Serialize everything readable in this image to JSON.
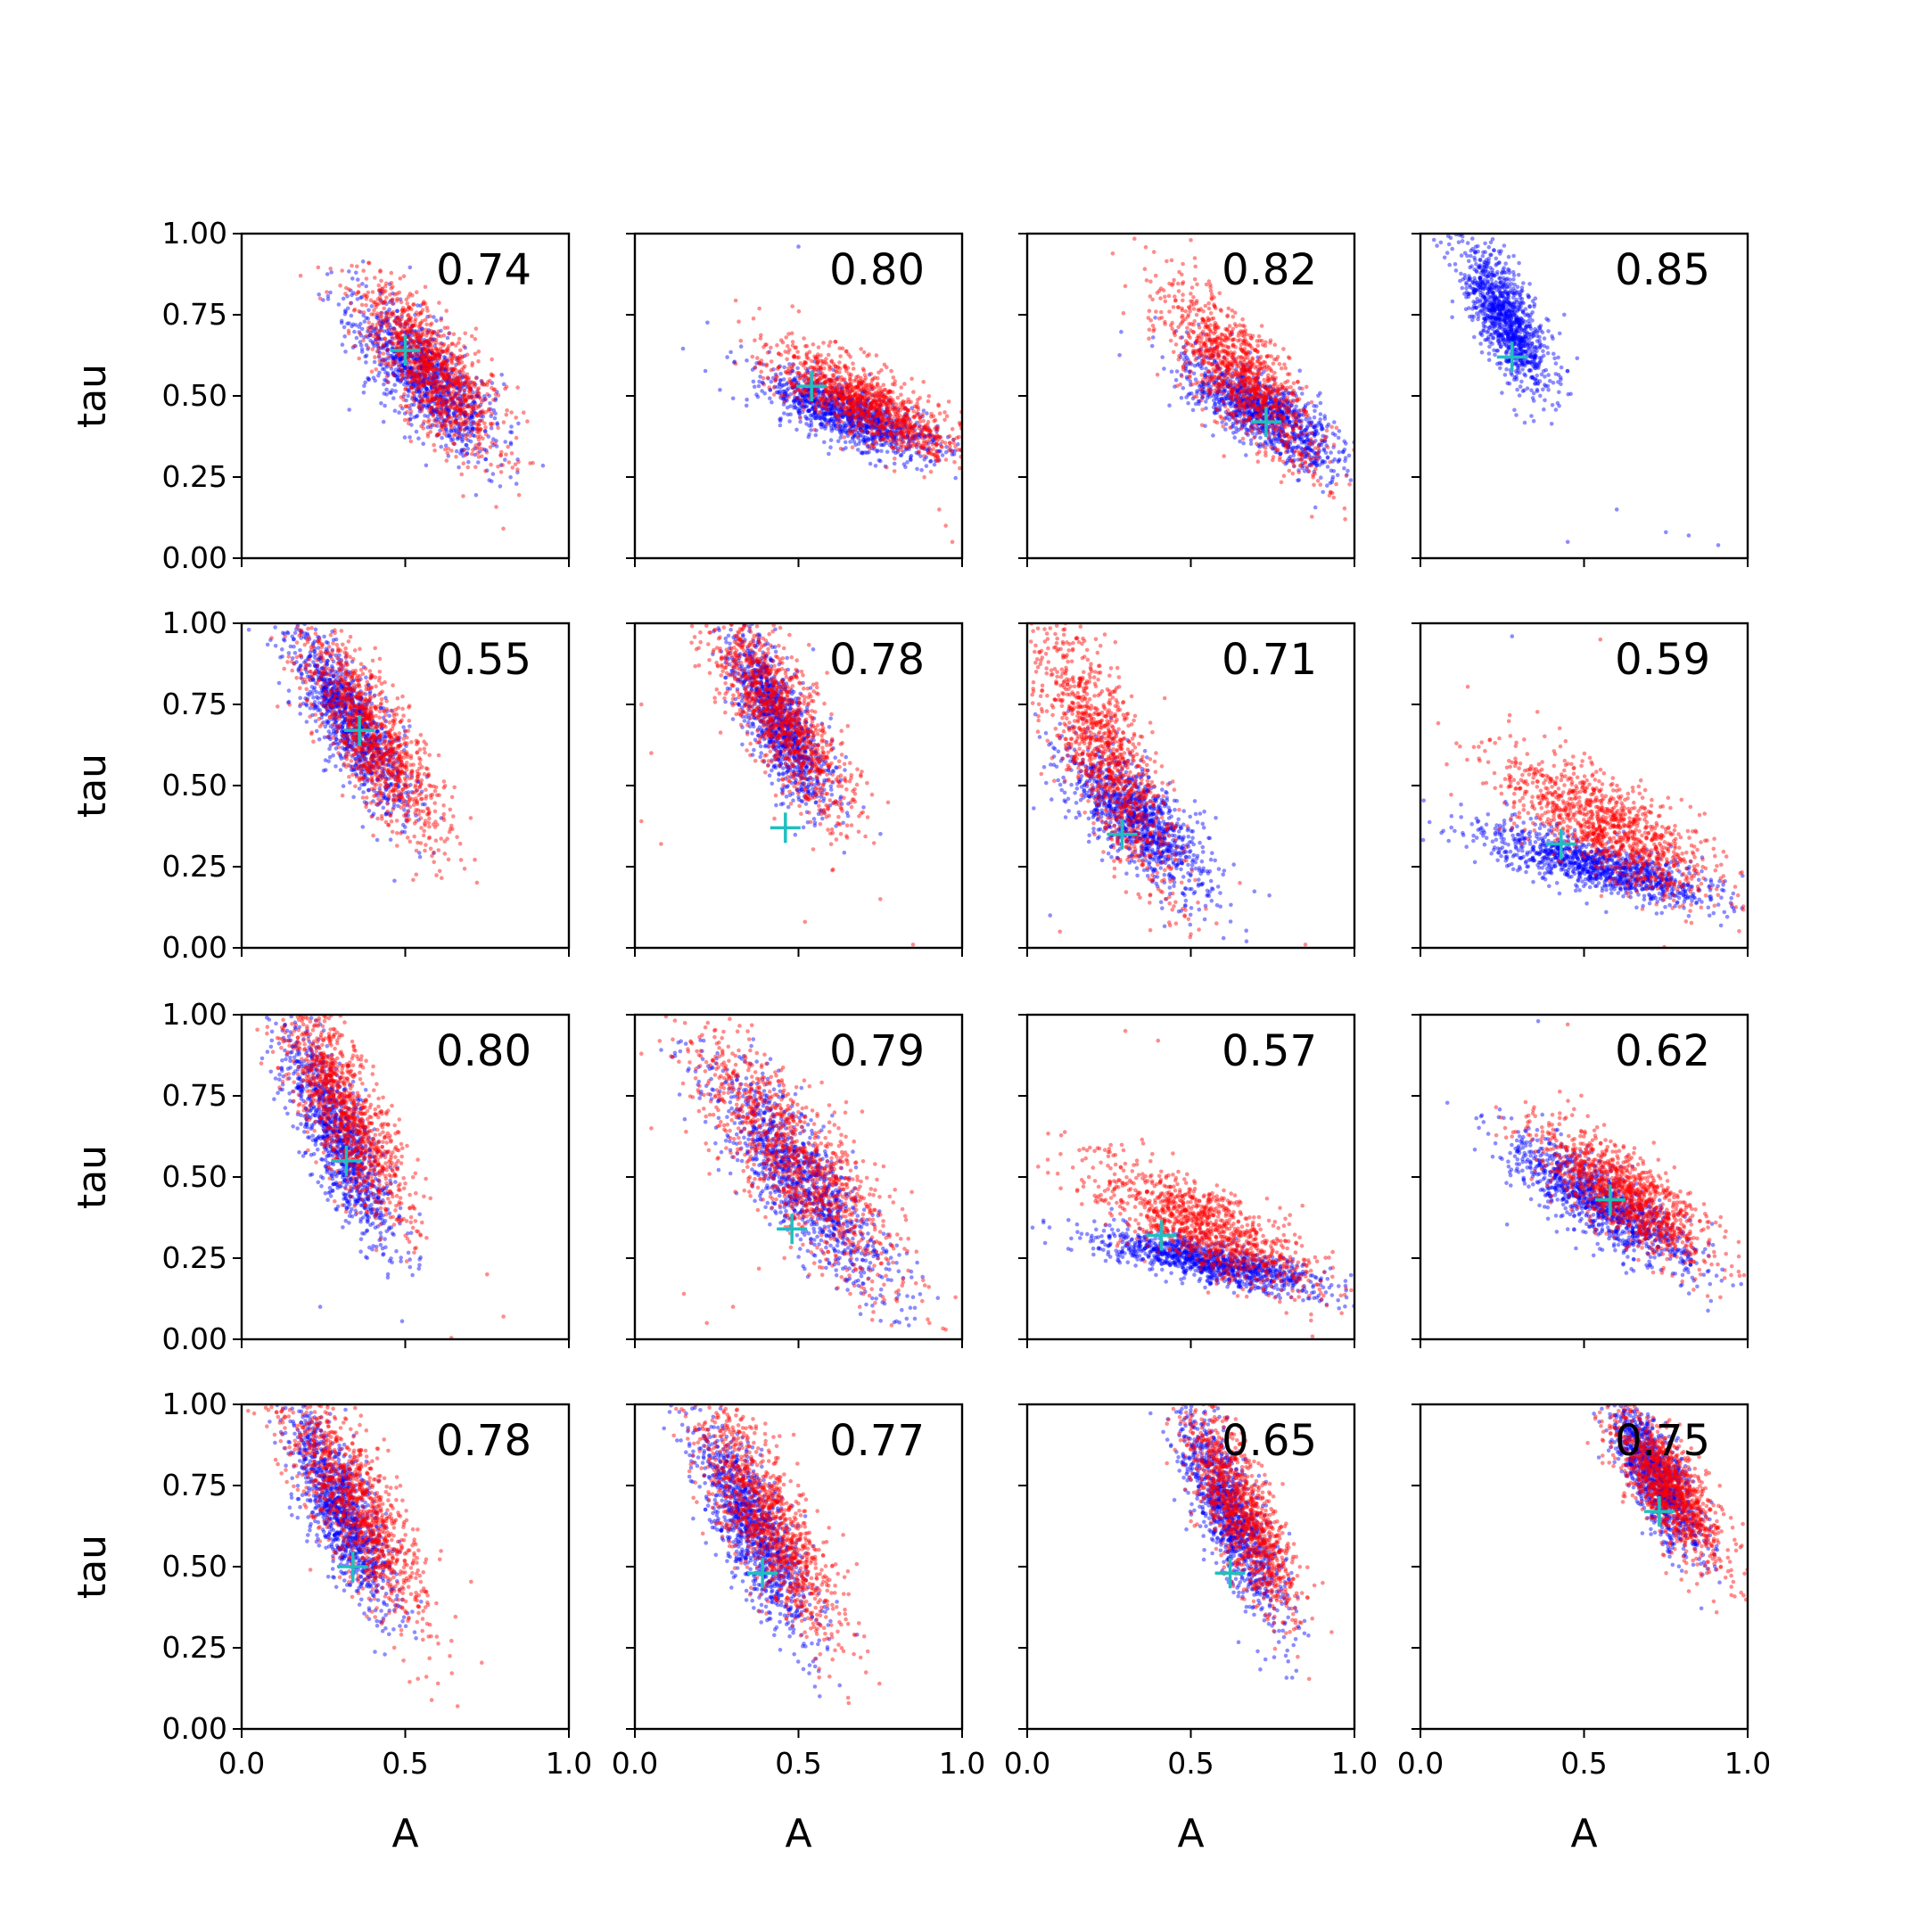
{
  "chart_data": {
    "type": "scatter",
    "layout": "4x4 grid of scatter panels, shared axes",
    "xlabel": "A",
    "ylabel": "tau",
    "xlim": [
      0.0,
      1.0
    ],
    "ylim": [
      0.0,
      1.0
    ],
    "xticks": [
      0.0,
      0.5,
      1.0
    ],
    "xtick_labels": [
      "0.0",
      "0.5",
      "1.0"
    ],
    "yticks": [
      0.0,
      0.25,
      0.5,
      0.75,
      1.0
    ],
    "ytick_labels": [
      "0.00",
      "0.25",
      "0.50",
      "0.75",
      "1.00"
    ],
    "grid": false,
    "series_colors": {
      "blue": "#0000ff",
      "red": "#ff0000",
      "marker": "#1fbfbf"
    },
    "panels": [
      {
        "row": 0,
        "col": 0,
        "label": "0.74",
        "marker": [
          0.5,
          0.64
        ],
        "blue": {
          "center": [
            0.56,
            0.56
          ],
          "spread": [
            0.1,
            0.14
          ],
          "slope": -1.0,
          "tail": []
        },
        "red": {
          "center": [
            0.58,
            0.58
          ],
          "spread": [
            0.1,
            0.16
          ],
          "slope": -1.1,
          "tail": [
            [
              0.18,
              0.87
            ],
            [
              0.24,
              0.8
            ],
            [
              0.26,
              0.82
            ]
          ]
        }
      },
      {
        "row": 0,
        "col": 1,
        "label": "0.80",
        "marker": [
          0.54,
          0.53
        ],
        "blue": {
          "center": [
            0.66,
            0.44
          ],
          "spread": [
            0.12,
            0.08
          ],
          "slope": -0.45,
          "tail": [
            [
              0.5,
              0.96
            ]
          ]
        },
        "red": {
          "center": [
            0.7,
            0.48
          ],
          "spread": [
            0.13,
            0.1
          ],
          "slope": -0.55,
          "tail": [
            [
              0.95,
              0.1
            ],
            [
              0.97,
              0.05
            ],
            [
              0.93,
              0.15
            ]
          ]
        }
      },
      {
        "row": 0,
        "col": 2,
        "label": "0.82",
        "marker": [
          0.73,
          0.42
        ],
        "blue": {
          "center": [
            0.72,
            0.45
          ],
          "spread": [
            0.11,
            0.1
          ],
          "slope": -0.7,
          "tail": []
        },
        "red": {
          "center": [
            0.66,
            0.56
          ],
          "spread": [
            0.11,
            0.15
          ],
          "slope": -1.1,
          "tail": [
            [
              0.5,
              0.98
            ]
          ]
        }
      },
      {
        "row": 0,
        "col": 3,
        "label": "0.85",
        "marker": [
          0.28,
          0.62
        ],
        "blue": {
          "center": [
            0.26,
            0.74
          ],
          "spread": [
            0.06,
            0.16
          ],
          "slope": -1.4,
          "tail": [
            [
              0.6,
              0.15
            ],
            [
              0.75,
              0.08
            ],
            [
              0.82,
              0.07
            ],
            [
              0.91,
              0.04
            ],
            [
              0.45,
              0.05
            ]
          ]
        }
      },
      {
        "row": 1,
        "col": 0,
        "label": "0.55",
        "marker": [
          0.36,
          0.67
        ],
        "blue": {
          "center": [
            0.33,
            0.7
          ],
          "spread": [
            0.08,
            0.16
          ],
          "slope": -1.5,
          "tail": []
        },
        "red": {
          "center": [
            0.4,
            0.65
          ],
          "spread": [
            0.1,
            0.17
          ],
          "slope": -1.4,
          "tail": [
            [
              0.13,
              0.86
            ],
            [
              0.7,
              0.4
            ]
          ]
        }
      },
      {
        "row": 1,
        "col": 1,
        "label": "0.78",
        "marker": [
          0.46,
          0.37
        ],
        "blue": {
          "center": [
            0.44,
            0.7
          ],
          "spread": [
            0.07,
            0.16
          ],
          "slope": -1.6,
          "tail": []
        },
        "red": {
          "center": [
            0.44,
            0.72
          ],
          "spread": [
            0.1,
            0.18
          ],
          "slope": -1.4,
          "tail": [
            [
              0.02,
              0.75
            ],
            [
              0.05,
              0.6
            ],
            [
              0.02,
              0.39
            ],
            [
              0.08,
              0.32
            ],
            [
              0.75,
              0.15
            ],
            [
              0.85,
              0.01
            ],
            [
              0.52,
              0.08
            ]
          ]
        }
      },
      {
        "row": 1,
        "col": 2,
        "label": "0.71",
        "marker": [
          0.29,
          0.35
        ],
        "blue": {
          "center": [
            0.33,
            0.4
          ],
          "spread": [
            0.1,
            0.15
          ],
          "slope": -0.9,
          "tail": [
            [
              0.02,
              0.43
            ],
            [
              0.07,
              0.1
            ],
            [
              0.6,
              0.03
            ],
            [
              0.67,
              0.02
            ]
          ]
        },
        "red": {
          "center": [
            0.24,
            0.6
          ],
          "spread": [
            0.1,
            0.22
          ],
          "slope": -1.8,
          "tail": [
            [
              0.1,
              0.05
            ],
            [
              0.85,
              0.01
            ],
            [
              0.65,
              0.2
            ]
          ]
        }
      },
      {
        "row": 1,
        "col": 3,
        "label": "0.59",
        "marker": [
          0.43,
          0.32
        ],
        "blue": {
          "center": [
            0.55,
            0.25
          ],
          "spread": [
            0.16,
            0.07
          ],
          "slope": -0.3,
          "tail": [
            [
              0.28,
              0.96
            ],
            [
              0.26,
              0.45
            ]
          ]
        },
        "red": {
          "center": [
            0.56,
            0.38
          ],
          "spread": [
            0.15,
            0.14
          ],
          "slope": -0.6,
          "tail": [
            [
              0.55,
              0.95
            ]
          ]
        }
      },
      {
        "row": 2,
        "col": 0,
        "label": "0.80",
        "marker": [
          0.32,
          0.55
        ],
        "blue": {
          "center": [
            0.3,
            0.62
          ],
          "spread": [
            0.08,
            0.18
          ],
          "slope": -1.9,
          "tail": [
            [
              0.24,
              0.1
            ]
          ]
        },
        "red": {
          "center": [
            0.32,
            0.7
          ],
          "spread": [
            0.09,
            0.2
          ],
          "slope": -1.7,
          "tail": [
            [
              0.06,
              0.85
            ],
            [
              0.8,
              0.07
            ],
            [
              0.75,
              0.2
            ]
          ]
        }
      },
      {
        "row": 2,
        "col": 1,
        "label": "0.79",
        "marker": [
          0.48,
          0.34
        ],
        "blue": {
          "center": [
            0.5,
            0.5
          ],
          "spread": [
            0.12,
            0.17
          ],
          "slope": -1.3,
          "tail": []
        },
        "red": {
          "center": [
            0.5,
            0.55
          ],
          "spread": [
            0.14,
            0.2
          ],
          "slope": -1.2,
          "tail": [
            [
              0.02,
              0.88
            ],
            [
              0.05,
              0.65
            ],
            [
              0.15,
              0.14
            ],
            [
              0.22,
              0.05
            ],
            [
              0.3,
              0.1
            ],
            [
              0.9,
              0.05
            ],
            [
              0.95,
              0.03
            ]
          ]
        }
      },
      {
        "row": 2,
        "col": 2,
        "label": "0.57",
        "marker": [
          0.41,
          0.32
        ],
        "blue": {
          "center": [
            0.55,
            0.24
          ],
          "spread": [
            0.15,
            0.06
          ],
          "slope": -0.25,
          "tail": [
            [
              0.95,
              0.12
            ]
          ]
        },
        "red": {
          "center": [
            0.53,
            0.35
          ],
          "spread": [
            0.15,
            0.12
          ],
          "slope": -0.55,
          "tail": [
            [
              0.3,
              0.95
            ],
            [
              0.4,
              0.92
            ]
          ]
        }
      },
      {
        "row": 2,
        "col": 3,
        "label": "0.62",
        "marker": [
          0.58,
          0.43
        ],
        "blue": {
          "center": [
            0.55,
            0.42
          ],
          "spread": [
            0.13,
            0.1
          ],
          "slope": -0.7,
          "tail": [
            [
              0.36,
              0.98
            ],
            [
              0.98,
              0.17
            ]
          ]
        },
        "red": {
          "center": [
            0.62,
            0.45
          ],
          "spread": [
            0.12,
            0.12
          ],
          "slope": -0.75,
          "tail": [
            [
              0.45,
              0.97
            ]
          ]
        }
      },
      {
        "row": 3,
        "col": 0,
        "label": "0.78",
        "marker": [
          0.34,
          0.5
        ],
        "blue": {
          "center": [
            0.3,
            0.68
          ],
          "spread": [
            0.07,
            0.18
          ],
          "slope": -1.8,
          "tail": []
        },
        "red": {
          "center": [
            0.34,
            0.7
          ],
          "spread": [
            0.1,
            0.2
          ],
          "slope": -1.6,
          "tail": [
            [
              0.02,
              0.98
            ],
            [
              0.66,
              0.07
            ],
            [
              0.6,
              0.14
            ]
          ]
        }
      },
      {
        "row": 3,
        "col": 1,
        "label": "0.77",
        "marker": [
          0.39,
          0.48
        ],
        "blue": {
          "center": [
            0.36,
            0.62
          ],
          "spread": [
            0.08,
            0.18
          ],
          "slope": -1.7,
          "tail": []
        },
        "red": {
          "center": [
            0.4,
            0.65
          ],
          "spread": [
            0.1,
            0.2
          ],
          "slope": -1.6,
          "tail": [
            [
              0.15,
              0.98
            ],
            [
              0.69,
              0.22
            ],
            [
              0.62,
              0.3
            ]
          ]
        }
      },
      {
        "row": 3,
        "col": 2,
        "label": "0.65",
        "marker": [
          0.62,
          0.48
        ],
        "blue": {
          "center": [
            0.62,
            0.66
          ],
          "spread": [
            0.07,
            0.17
          ],
          "slope": -1.9,
          "tail": []
        },
        "red": {
          "center": [
            0.65,
            0.68
          ],
          "spread": [
            0.08,
            0.18
          ],
          "slope": -1.8,
          "tail": []
        }
      },
      {
        "row": 3,
        "col": 3,
        "label": "0.75",
        "marker": [
          0.73,
          0.67
        ],
        "blue": {
          "center": [
            0.72,
            0.78
          ],
          "spread": [
            0.06,
            0.14
          ],
          "slope": -1.5,
          "tail": []
        },
        "red": {
          "center": [
            0.76,
            0.74
          ],
          "spread": [
            0.08,
            0.15
          ],
          "slope": -1.2,
          "tail": [
            [
              0.98,
              0.42
            ]
          ]
        }
      }
    ]
  }
}
